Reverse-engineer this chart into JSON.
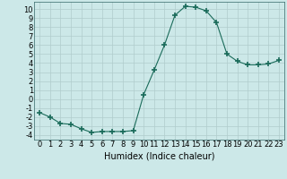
{
  "x": [
    0,
    1,
    2,
    3,
    4,
    5,
    6,
    7,
    8,
    9,
    10,
    11,
    12,
    13,
    14,
    15,
    16,
    17,
    18,
    19,
    20,
    21,
    22,
    23
  ],
  "y": [
    -1.5,
    -2.0,
    -2.7,
    -2.8,
    -3.3,
    -3.7,
    -3.6,
    -3.6,
    -3.6,
    -3.5,
    0.5,
    3.2,
    6.0,
    9.3,
    10.3,
    10.2,
    9.8,
    8.5,
    5.0,
    4.2,
    3.8,
    3.8,
    3.9,
    4.3
  ],
  "line_color": "#1a6b5a",
  "marker": "+",
  "marker_size": 4.0,
  "marker_lw": 1.2,
  "bg_color": "#cce8e8",
  "grid_color": "#b0cccc",
  "xlabel": "Humidex (Indice chaleur)",
  "xlabel_fontsize": 7,
  "tick_fontsize": 6,
  "ylim": [
    -4.5,
    10.8
  ],
  "xlim": [
    -0.5,
    23.5
  ],
  "yticks": [
    -4,
    -3,
    -2,
    -1,
    0,
    1,
    2,
    3,
    4,
    5,
    6,
    7,
    8,
    9,
    10
  ],
  "xticks": [
    0,
    1,
    2,
    3,
    4,
    5,
    6,
    7,
    8,
    9,
    10,
    11,
    12,
    13,
    14,
    15,
    16,
    17,
    18,
    19,
    20,
    21,
    22,
    23
  ]
}
